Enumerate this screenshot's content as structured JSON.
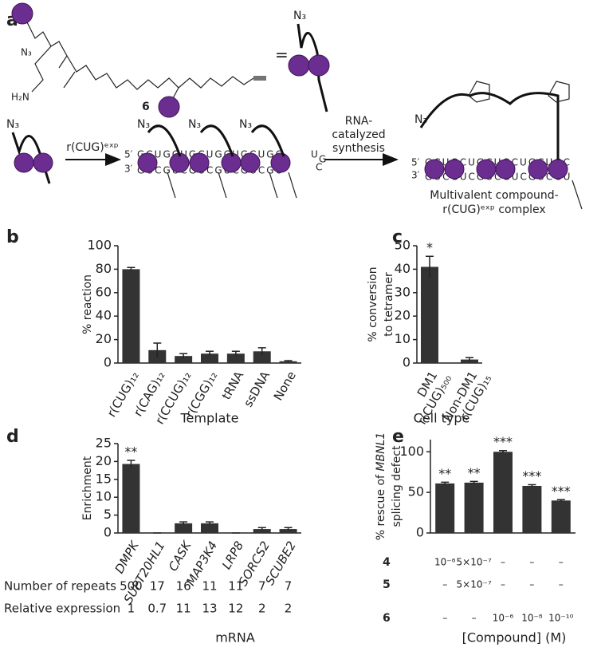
{
  "scheme": {
    "panel": "a",
    "compound_label": "6",
    "equals": "=",
    "azide": "N₃",
    "amine": "H₂N",
    "template_arrow": "r(CUG)ᵉˣᵖ",
    "reaction_arrow": [
      "RNA-",
      "catalyzed",
      "synthesis"
    ],
    "strand5": "5′",
    "strand3": "3′",
    "top_strand": "GCUGCUGCUGCUGCUGC",
    "bottom_strand": "GUCGUCGUCGUCGUCGU",
    "loop": [
      "U",
      "G",
      "C"
    ],
    "product": [
      "Multivalent compound-",
      "r(CUG)ᵉˣᵖ complex"
    ]
  },
  "chart_data": [
    {
      "type": "bar",
      "panel": "b",
      "ylabel": [
        "% reaction"
      ],
      "xlabel": "Template",
      "categories": [
        [
          "r(CUG)₁₂"
        ],
        [
          "r(CAG)₁₂"
        ],
        [
          "r(CCUG)₁₂"
        ],
        [
          "r(CGG)₁₂"
        ],
        [
          "tRNA"
        ],
        [
          "ssDNA"
        ],
        [
          "None"
        ]
      ],
      "values": [
        80,
        11,
        6,
        8,
        8,
        10,
        1.5
      ],
      "errors": [
        1.5,
        6,
        2,
        2,
        2,
        3,
        0.5
      ],
      "ylim": [
        0,
        100
      ],
      "yticks": [
        0,
        20,
        40,
        60,
        80,
        100
      ],
      "color": "#333333"
    },
    {
      "type": "bar",
      "panel": "c",
      "ylabel": [
        "% conversion",
        "to tetramer"
      ],
      "xlabel": "Cell type",
      "categories": [
        [
          "DM1",
          "r(CUG)₅₀₀"
        ],
        [
          "Non-DM1",
          "r(CUG)₁₅"
        ]
      ],
      "values": [
        41,
        1.5
      ],
      "errors": [
        4.5,
        0.8
      ],
      "value_annotations": [
        "*",
        null
      ],
      "ylim": [
        0,
        50
      ],
      "yticks": [
        0,
        10,
        20,
        30,
        40,
        50
      ],
      "color": "#333333"
    },
    {
      "type": "bar",
      "panel": "d",
      "ylabel": [
        "Enrichment"
      ],
      "xlabel": "mRNA",
      "italic_categories": true,
      "categories": [
        [
          "DMPK"
        ],
        [
          "SUPT20HL1"
        ],
        [
          "CASK"
        ],
        [
          "MAP3K4"
        ],
        [
          "LRP8"
        ],
        [
          "SORCS2"
        ],
        [
          "SCUBE2"
        ]
      ],
      "values": [
        19.3,
        0,
        2.7,
        2.7,
        0,
        1.1,
        1.1
      ],
      "errors": [
        1,
        0,
        0.4,
        0.4,
        0,
        0.4,
        0.4
      ],
      "value_annotations": [
        "**",
        null,
        null,
        null,
        null,
        null,
        null
      ],
      "ylim": [
        0,
        25
      ],
      "yticks": [
        0,
        5,
        10,
        15,
        20,
        25
      ],
      "color": "#333333",
      "table": [
        {
          "label": "Number of repeats",
          "values": [
            500,
            17,
            16,
            11,
            11,
            7,
            7
          ]
        },
        {
          "label": "Relative expression",
          "values": [
            1,
            0.7,
            11,
            13,
            12,
            2,
            2
          ]
        }
      ]
    },
    {
      "type": "bar",
      "panel": "e",
      "ylabel": [
        "% rescue of ",
        "MBNL1",
        "splicing defect"
      ],
      "xlabel": "[Compound] (M)",
      "categories": [
        null,
        null,
        null,
        null,
        null
      ],
      "values": [
        61,
        62,
        100,
        58,
        40
      ],
      "errors": [
        1.5,
        1.5,
        1.5,
        1.5,
        1
      ],
      "value_annotations": [
        "**",
        "**",
        "***",
        "***",
        "***"
      ],
      "ylim": [
        0,
        115
      ],
      "yticks": [
        0,
        50,
        100
      ],
      "color": "#333333",
      "table": [
        {
          "label": "4",
          "values": [
            "10⁻⁶",
            "5×10⁻⁷",
            "–",
            "–",
            "–"
          ]
        },
        {
          "label": "5",
          "values": [
            "–",
            "5×10⁻⁷",
            "–",
            "–",
            "–"
          ]
        },
        {
          "label": "6",
          "values": [
            "–",
            "–",
            "10⁻⁶",
            "10⁻⁸",
            "10⁻¹⁰"
          ]
        }
      ]
    }
  ]
}
